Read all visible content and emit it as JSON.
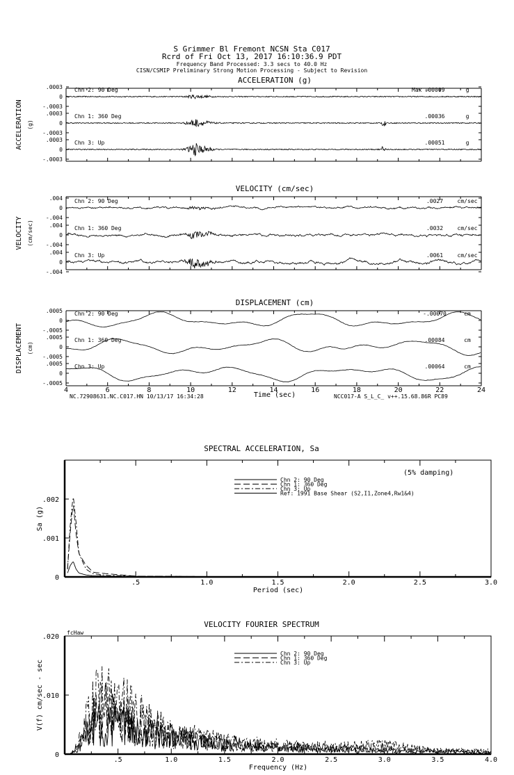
{
  "header": {
    "line1": "S Grimmer Bl Fremont    NCSN Sta C017",
    "line2": "Rcrd of Fri Oct 13, 2017 16:10:36.9 PDT",
    "line3": "Frequency Band Processed: 3.3 secs to 40.0 Hz",
    "line4": "CISN/CSMIP Preliminary Strong Motion Processing - Subject to Revision"
  },
  "footer": {
    "left": "NC.72908631.NC.C017.HN 10/13/17 16:34:28",
    "right": "NCC017-A  S_L_C_  v++.15.68.86R PC89"
  },
  "chart_data": [
    {
      "type": "line",
      "title": "ACCELERATION (g)",
      "ylabel": "ACCELERATION",
      "yunit": "(g)",
      "xlabel": "",
      "xlim": [
        4,
        24
      ],
      "ytick_labels": [
        ".0003",
        "0",
        "-.0003"
      ],
      "max_label": "Max =",
      "channels": [
        {
          "name": "Chn 2: 90 Deg",
          "max": ".00009",
          "unit": "g"
        },
        {
          "name": "Chn 1: 360 Deg",
          "max": ".00036",
          "unit": "g"
        },
        {
          "name": "Chn 3: Up",
          "max": ".00051",
          "unit": "g"
        }
      ]
    },
    {
      "type": "line",
      "title": "VELOCITY (cm/sec)",
      "ylabel": "VELOCITY",
      "yunit": "(cm/sec)",
      "xlabel": "",
      "xlim": [
        4,
        24
      ],
      "ytick_labels": [
        ".004",
        "0",
        "-.004"
      ],
      "channels": [
        {
          "name": "Chn 2: 90 Deg",
          "max": ".0027",
          "unit": "cm/sec"
        },
        {
          "name": "Chn 1: 360 Deg",
          "max": ".0032",
          "unit": "cm/sec"
        },
        {
          "name": "Chn 3: Up",
          "max": ".0061",
          "unit": "cm/sec"
        }
      ]
    },
    {
      "type": "line",
      "title": "DISPLACEMENT (cm)",
      "ylabel": "DISPLACEMENT",
      "yunit": "(cm)",
      "xlabel": "Time (sec)",
      "xlim": [
        4,
        24
      ],
      "xticks": [
        "4",
        "6",
        "8",
        "10",
        "12",
        "14",
        "16",
        "18",
        "20",
        "22",
        "24"
      ],
      "ytick_labels": [
        ".0005",
        "0",
        "-.0005"
      ],
      "channels": [
        {
          "name": "Chn 2: 90 Deg",
          "max": "-.00070",
          "unit": "cm"
        },
        {
          "name": "Chn 1: 360 Deg",
          "max": ".00084",
          "unit": "cm"
        },
        {
          "name": "Chn 3: Up",
          "max": ".00064",
          "unit": "cm"
        }
      ]
    },
    {
      "type": "line",
      "title": "SPECTRAL ACCELERATION, Sa",
      "note": "(5% damping)",
      "xlabel": "Period (sec)",
      "ylabel": "Sa (g)",
      "xlim": [
        0,
        3.0
      ],
      "ylim": [
        0,
        0.003
      ],
      "xticks": [
        ".5",
        "1.0",
        "1.5",
        "2.0",
        "2.5",
        "3.0"
      ],
      "yticks": [
        ".002",
        ".001",
        "0"
      ],
      "legend": "top-center",
      "series": [
        {
          "name": "Chn 2: 90 Deg",
          "style": "solid",
          "x": [
            0.02,
            0.04,
            0.06,
            0.08,
            0.1,
            0.15,
            0.2,
            0.3,
            0.5,
            1.0,
            3.0
          ],
          "y": [
            0.0001,
            0.0003,
            0.0004,
            0.0002,
            0.0001,
            5e-05,
            3e-05,
            2e-05,
            1e-05,
            5e-06,
            0.0
          ]
        },
        {
          "name": "Chn 1: 360 Deg",
          "style": "dashed",
          "x": [
            0.02,
            0.04,
            0.06,
            0.08,
            0.1,
            0.15,
            0.2,
            0.3,
            0.4,
            0.5,
            1.0,
            3.0
          ],
          "y": [
            0.0002,
            0.0012,
            0.0019,
            0.0011,
            0.0006,
            0.0003,
            0.00012,
            8e-05,
            5e-05,
            2e-05,
            1e-05,
            0.0
          ]
        },
        {
          "name": "Chn 3: Up",
          "style": "dashdot",
          "x": [
            0.02,
            0.04,
            0.06,
            0.08,
            0.1,
            0.15,
            0.2,
            0.3,
            0.5,
            1.0,
            3.0
          ],
          "y": [
            0.0002,
            0.0014,
            0.0021,
            0.0014,
            0.0006,
            0.0002,
            8e-05,
            4e-05,
            2e-05,
            1e-05,
            0.0
          ]
        },
        {
          "name": "Ref: 1991 Base Shear (S2,I1,Zone4,Rw1&4)",
          "style": "solid",
          "x": [],
          "y": []
        }
      ]
    },
    {
      "type": "line",
      "title": "VELOCITY FOURIER SPECTRUM",
      "corner_label": "fcHaw",
      "xlabel": "Frequency (Hz)",
      "ylabel": "V(f)  cm/sec - sec",
      "xlim": [
        0,
        4.0
      ],
      "ylim": [
        0,
        0.02
      ],
      "xticks": [
        ".5",
        "1.0",
        "1.5",
        "2.0",
        "2.5",
        "3.0",
        "3.5",
        "4.0"
      ],
      "yticks": [
        ".020",
        ".010",
        "0"
      ],
      "legend": "top-center",
      "series": [
        {
          "name": "Chn 2: 90 Deg",
          "style": "solid",
          "x": [
            0.05,
            0.1,
            0.2,
            0.3,
            0.5,
            0.7,
            1.0,
            1.5,
            2.0,
            2.5,
            3.0,
            3.5,
            4.0
          ],
          "y": [
            0,
            0.0005,
            0.003,
            0.005,
            0.005,
            0.004,
            0.0025,
            0.0015,
            0.001,
            0.0008,
            0.0006,
            0.0004,
            0.0003
          ]
        },
        {
          "name": "Chn 1: 360 Deg",
          "style": "dashed",
          "x": [
            0.05,
            0.1,
            0.2,
            0.3,
            0.5,
            0.7,
            1.0,
            1.5,
            2.0,
            2.5,
            3.0,
            3.5,
            4.0
          ],
          "y": [
            0,
            0.0007,
            0.004,
            0.007,
            0.007,
            0.005,
            0.003,
            0.002,
            0.0013,
            0.001,
            0.0008,
            0.0005,
            0.0004
          ]
        },
        {
          "name": "Chn 3: Up",
          "style": "dashdot",
          "x": [
            0.05,
            0.1,
            0.2,
            0.3,
            0.5,
            0.7,
            1.0,
            1.5,
            2.0,
            2.5,
            3.0,
            3.5,
            4.0
          ],
          "y": [
            0,
            0.0008,
            0.005,
            0.009,
            0.0085,
            0.006,
            0.0035,
            0.002,
            0.0015,
            0.0012,
            0.0015,
            0.0006,
            0.0005
          ]
        }
      ]
    }
  ]
}
